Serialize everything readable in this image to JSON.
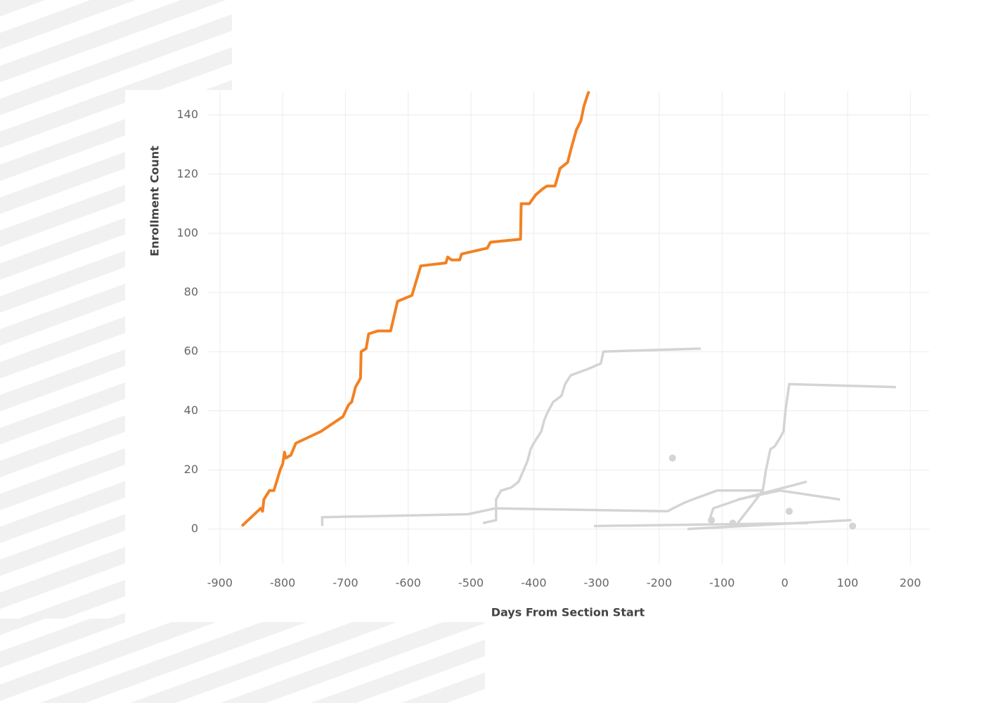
{
  "chart_data": {
    "type": "line",
    "xlabel": "Days From Section Start",
    "ylabel": "Enrollment Count",
    "xlim": [
      -920,
      230
    ],
    "ylim": [
      -12,
      148
    ],
    "xticks": [
      -900,
      -800,
      -700,
      -600,
      -500,
      -400,
      -300,
      -200,
      -100,
      0,
      100,
      200
    ],
    "yticks": [
      0,
      20,
      40,
      60,
      80,
      100,
      120,
      140
    ],
    "grid": true,
    "series": [
      {
        "color": "#f28123",
        "x": [
          -865,
          -835,
          -832,
          -830,
          -821,
          -814,
          -804,
          -800,
          -797,
          -795,
          -787,
          -779,
          -739,
          -704,
          -695,
          -690,
          -684,
          -676,
          -675,
          -667,
          -663,
          -648,
          -628,
          -617,
          -594,
          -580,
          -540,
          -537,
          -531,
          -518,
          -515,
          -474,
          -469,
          -421,
          -420,
          -407,
          -397,
          -386,
          -379,
          -366,
          -358,
          -346,
          -340,
          -332,
          -325,
          -320,
          -314,
          -312
        ],
        "values": [
          1,
          7,
          6,
          10,
          13,
          13,
          20,
          22,
          26,
          24,
          25,
          29,
          33,
          38,
          42,
          43,
          48,
          51,
          60,
          61,
          66,
          67,
          67,
          77,
          79,
          89,
          90,
          92,
          91,
          91,
          93,
          95,
          97,
          98,
          110,
          110,
          113,
          115,
          116,
          116,
          122,
          124,
          129,
          135,
          138,
          143,
          147,
          148
        ]
      },
      {
        "color": "#d4d4d4",
        "x": [
          -481,
          -460,
          -460,
          -452,
          -436,
          -424,
          -416,
          -410,
          -405,
          -400,
          -388,
          -383,
          -379,
          -369,
          -356,
          -350,
          -341,
          -315,
          -293,
          -289,
          -134
        ],
        "values": [
          2,
          3,
          10,
          13,
          14,
          16,
          20,
          23,
          27,
          29,
          33,
          37,
          39,
          43,
          45,
          49,
          52,
          54,
          56,
          60,
          61
        ]
      },
      {
        "color": "#d4d4d4",
        "x": [
          -737,
          -737,
          -505,
          -461,
          -187,
          -178,
          -159,
          -147,
          -108,
          -36
        ],
        "values": [
          1,
          4,
          5,
          7,
          6,
          7,
          9,
          10,
          13,
          13
        ]
      },
      {
        "color": "#d4d4d4",
        "x": [
          -75,
          -53,
          -35,
          -30,
          -23,
          -16,
          -10,
          -2,
          1,
          7,
          177
        ],
        "values": [
          2,
          8,
          13,
          20,
          27,
          28,
          30,
          33,
          40,
          49,
          48
        ]
      },
      {
        "color": "#d4d4d4",
        "x": [
          -304,
          37
        ],
        "values": [
          1,
          2
        ]
      },
      {
        "color": "#d4d4d4",
        "x": [
          -155,
          106
        ],
        "values": [
          0,
          3
        ]
      },
      {
        "color": "#d4d4d4",
        "x": [
          -120,
          -114,
          -73,
          35
        ],
        "values": [
          3,
          7,
          10,
          16
        ]
      },
      {
        "color": "#d4d4d4",
        "x": [
          -75,
          -8,
          88
        ],
        "values": [
          10,
          13,
          10
        ]
      },
      {
        "color": "#d4d4d4",
        "x": [
          -179
        ],
        "values": [
          24
        ]
      },
      {
        "color": "#d4d4d4",
        "x": [
          7
        ],
        "values": [
          6
        ]
      },
      {
        "color": "#d4d4d4",
        "x": [
          108
        ],
        "values": [
          1
        ]
      },
      {
        "color": "#d4d4d4",
        "x": [
          -117
        ],
        "values": [
          3
        ]
      },
      {
        "color": "#d4d4d4",
        "x": [
          -83
        ],
        "values": [
          2
        ]
      }
    ]
  }
}
